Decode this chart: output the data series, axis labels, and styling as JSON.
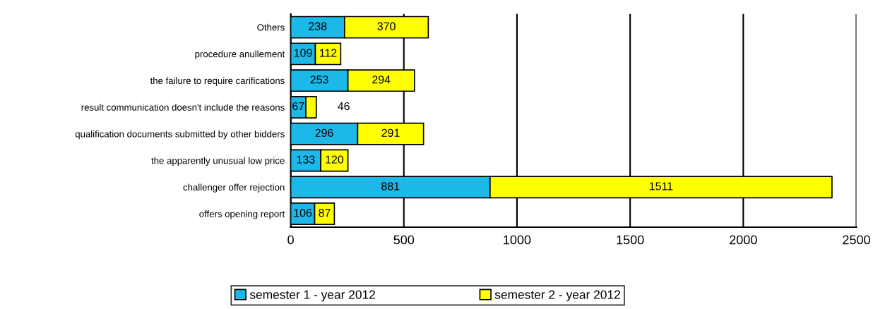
{
  "chart_data": {
    "type": "bar",
    "orientation": "horizontal",
    "stacked": true,
    "categories": [
      "Others",
      "procedure anullement",
      "the failure to require carifications",
      "result communication doesn't include the reasons",
      "qualification documents submitted by other bidders",
      "the apparently unusual low price",
      "challenger offer rejection",
      "offers opening report"
    ],
    "series": [
      {
        "name": "semester 1 - year 2012",
        "color": "#1cb8e8",
        "values": [
          238,
          109,
          253,
          67,
          296,
          133,
          881,
          106
        ]
      },
      {
        "name": "semester 2 - year 2012",
        "color": "#ffff00",
        "values": [
          370,
          112,
          294,
          46,
          291,
          120,
          1511,
          87
        ]
      }
    ],
    "xlim": [
      0,
      2500
    ],
    "xticks": [
      0,
      500,
      1000,
      1500,
      2000,
      2500
    ],
    "grid": "x",
    "legend": "bottom",
    "data_labels": true
  }
}
